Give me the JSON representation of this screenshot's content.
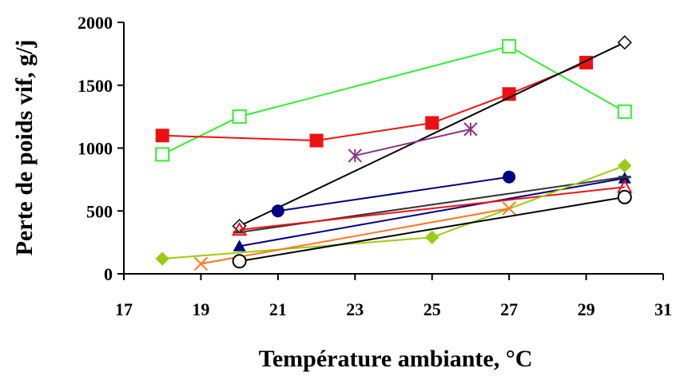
{
  "chart_data": {
    "type": "line",
    "xlabel": "Température ambiante, °C",
    "ylabel": "Perte de poids vif, g/j",
    "xlim": [
      17,
      31
    ],
    "ylim": [
      0,
      2000
    ],
    "xticks": [
      17,
      19,
      21,
      23,
      25,
      27,
      29,
      31
    ],
    "yticks": [
      0,
      500,
      1000,
      1500,
      2000
    ],
    "grid": false,
    "legend": "none",
    "series": [
      {
        "color": "#33ee33",
        "marker": "square-open",
        "x": [
          18,
          20,
          27,
          30
        ],
        "y": [
          950,
          1250,
          1810,
          1290
        ]
      },
      {
        "color": "#ee1111",
        "marker": "square-filled",
        "x": [
          18,
          22,
          25,
          27,
          29
        ],
        "y": [
          1100,
          1060,
          1200,
          1430,
          1680
        ]
      },
      {
        "color": "#000000",
        "marker": "diamond-open",
        "x": [
          20,
          30
        ],
        "y": [
          380,
          1840
        ]
      },
      {
        "color": "#883388",
        "marker": "asterisk",
        "x": [
          23,
          26
        ],
        "y": [
          940,
          1150
        ]
      },
      {
        "color": "#000080",
        "marker": "circle-filled",
        "x": [
          21,
          27
        ],
        "y": [
          500,
          770
        ]
      },
      {
        "color": "#000080",
        "marker": "triangle-filled",
        "x": [
          20,
          30
        ],
        "y": [
          220,
          760
        ]
      },
      {
        "color": "#333333",
        "marker": "dash",
        "x": [
          20,
          30
        ],
        "y": [
          330,
          770
        ]
      },
      {
        "color": "#ee1111",
        "marker": "triangle-open",
        "x": [
          20,
          30
        ],
        "y": [
          350,
          690
        ]
      },
      {
        "color": "#99cc11",
        "marker": "diamond-filled",
        "x": [
          18,
          25,
          30
        ],
        "y": [
          120,
          290,
          860
        ]
      },
      {
        "color": "#ff7722",
        "marker": "x",
        "x": [
          19,
          27
        ],
        "y": [
          80,
          520
        ]
      },
      {
        "color": "#000000",
        "marker": "circle-open",
        "x": [
          20,
          30
        ],
        "y": [
          100,
          610
        ]
      }
    ]
  }
}
